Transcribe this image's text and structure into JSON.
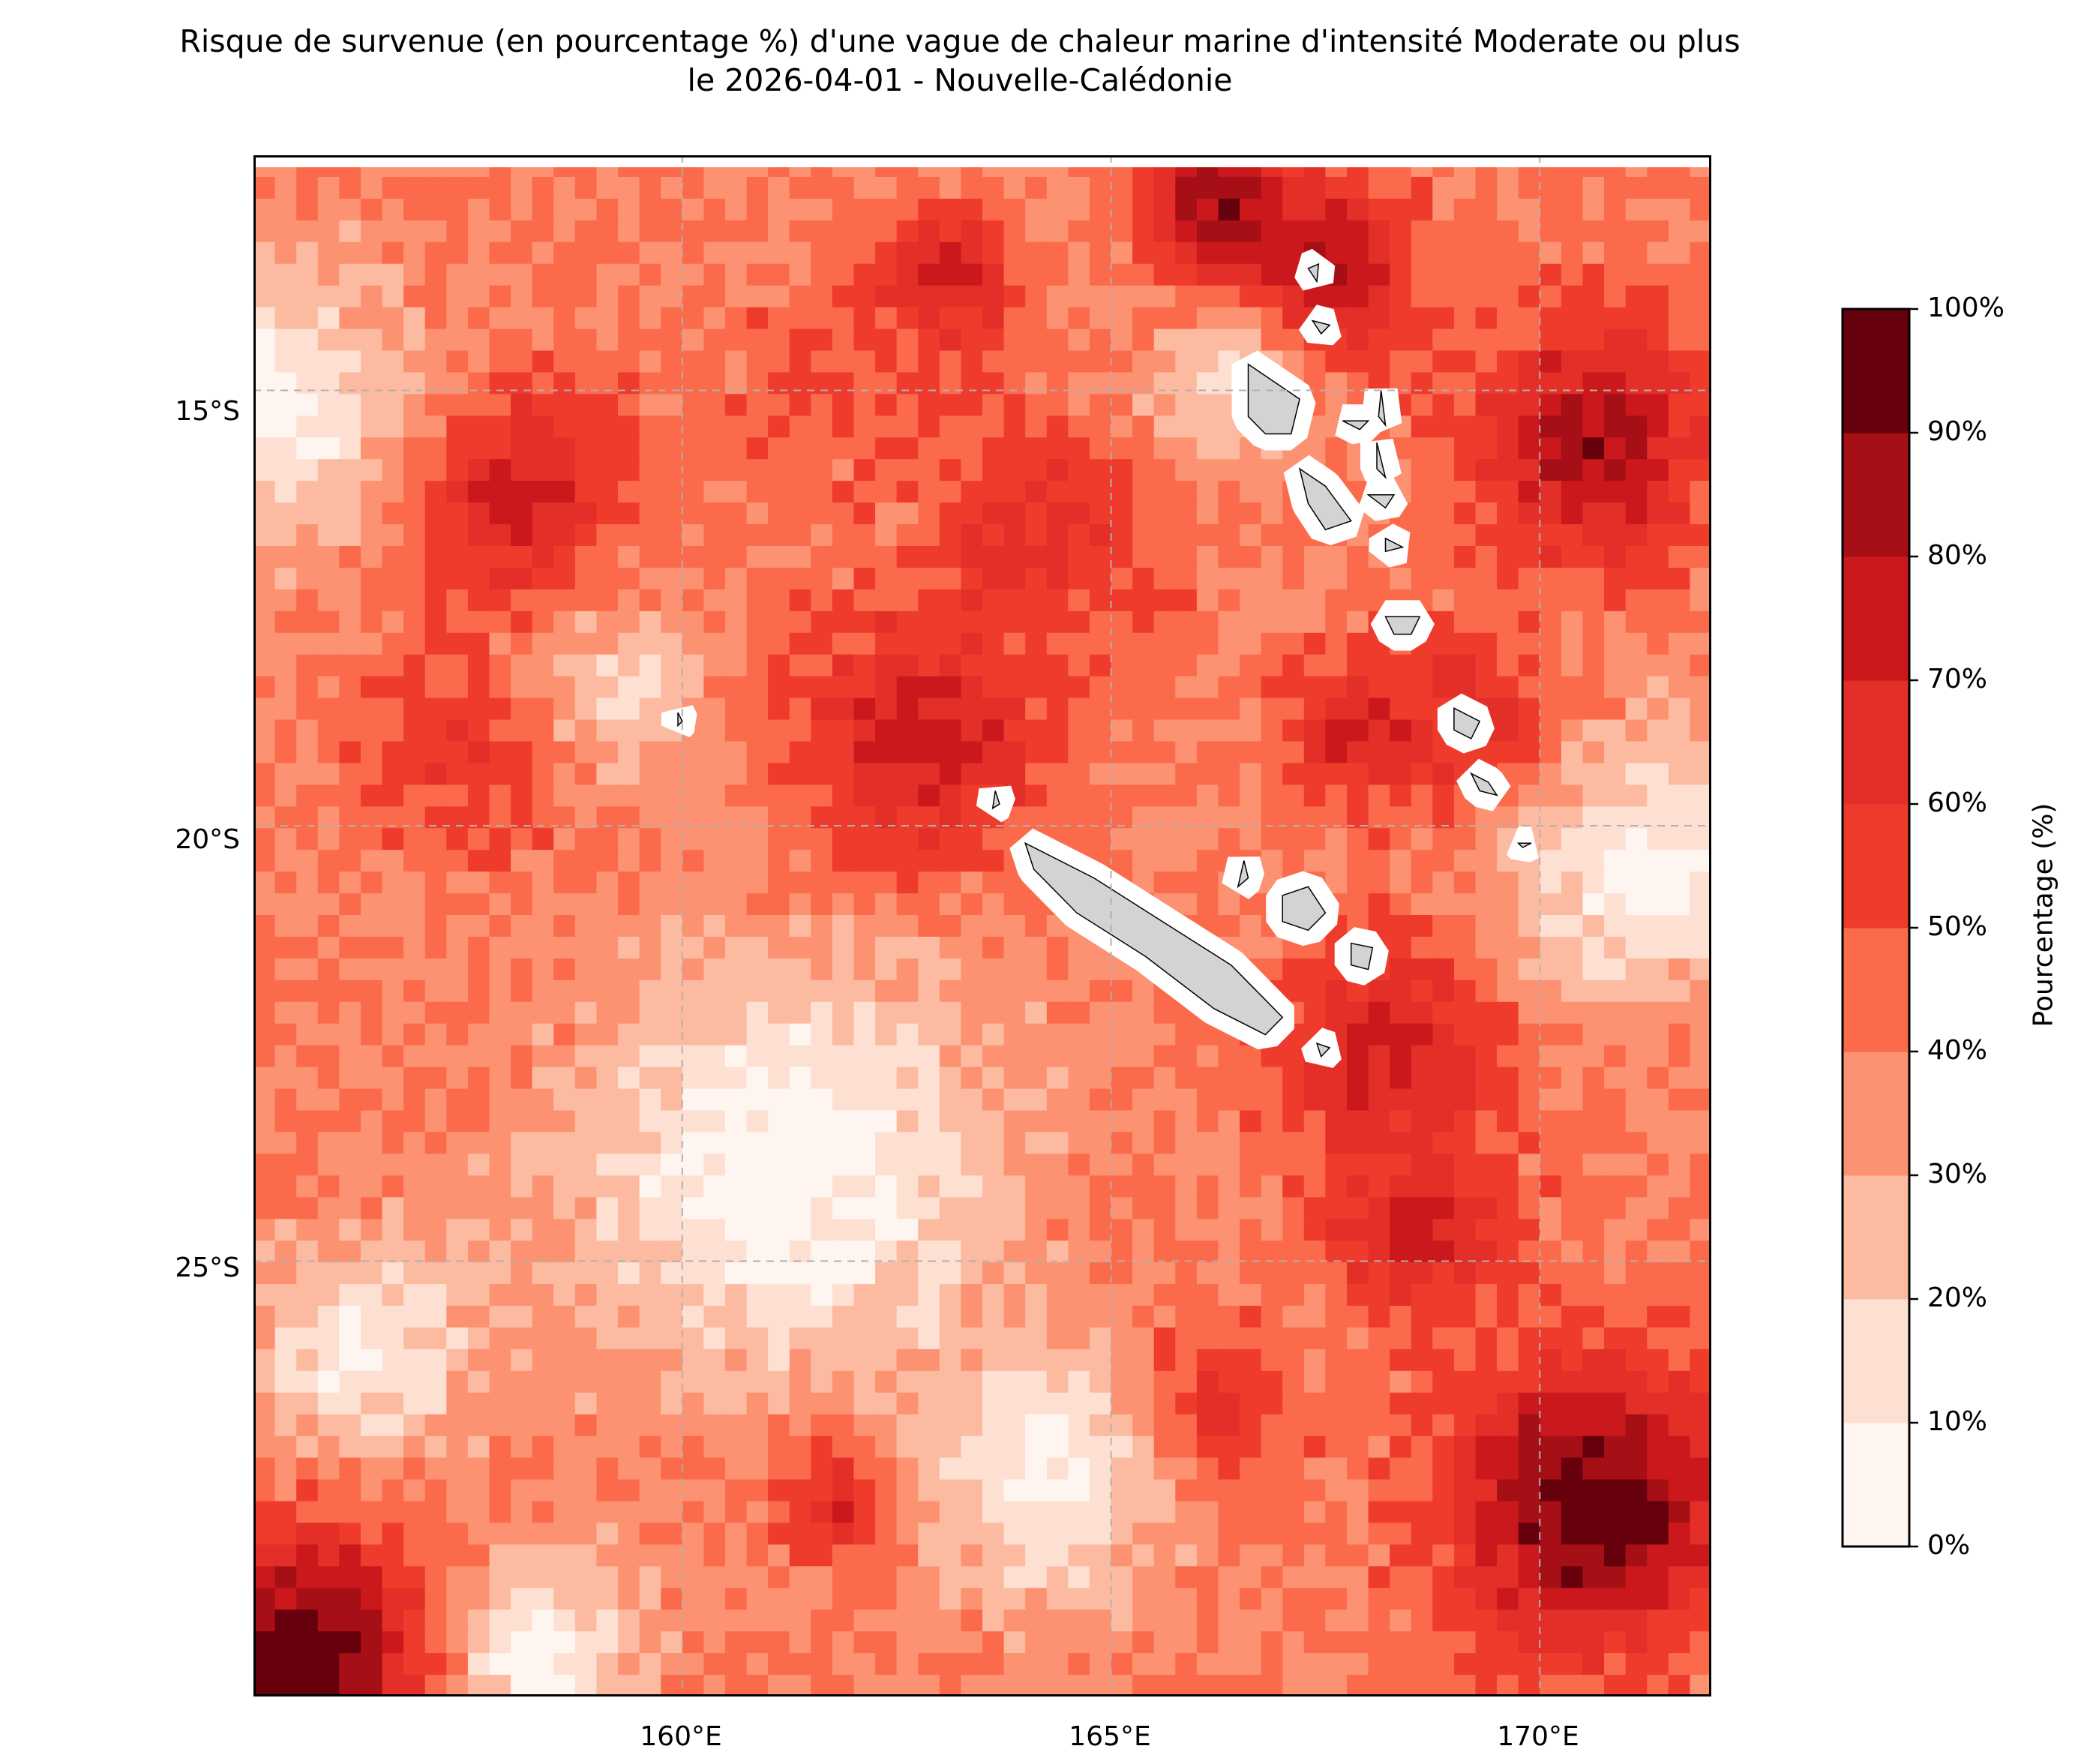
{
  "title": {
    "line1": "Risque de survenue (en pourcentage %) d'une vague de chaleur marine d'intensité Moderate ou plus",
    "line2": "le 2026-04-01 - Nouvelle-Calédonie"
  },
  "map": {
    "region": "Nouvelle-Calédonie",
    "lon_range": [
      155,
      172
    ],
    "lat_range": [
      -30,
      -12.3
    ],
    "lat_ticks": [
      {
        "value": -15,
        "label": "15°S"
      },
      {
        "value": -20,
        "label": "20°S"
      },
      {
        "value": -25,
        "label": "25°S"
      }
    ],
    "lon_ticks": [
      {
        "value": 160,
        "label": "160°E"
      },
      {
        "value": 165,
        "label": "165°E"
      },
      {
        "value": 170,
        "label": "170°E"
      }
    ],
    "gridlines": true,
    "land_color": "#d3d3d3",
    "hotspots": [
      {
        "lon": 167.4,
        "lat": -13.6,
        "value": 82,
        "r": 1.0
      },
      {
        "lon": 166.2,
        "lat": -12.8,
        "value": 88,
        "r": 0.8
      },
      {
        "lon": 170.6,
        "lat": -15.6,
        "value": 84,
        "r": 1.3
      },
      {
        "lon": 158.0,
        "lat": -16.2,
        "value": 76,
        "r": 1.2
      },
      {
        "lon": 162.8,
        "lat": -19.0,
        "value": 75,
        "r": 1.4
      },
      {
        "lon": 163.0,
        "lat": -13.8,
        "value": 74,
        "r": 0.8
      },
      {
        "lon": 164.3,
        "lat": -16.6,
        "value": 64,
        "r": 1.2
      },
      {
        "lon": 168.3,
        "lat": -22.5,
        "value": 74,
        "r": 1.2
      },
      {
        "lon": 168.6,
        "lat": -24.6,
        "value": 72,
        "r": 1.0
      },
      {
        "lon": 167.9,
        "lat": -18.9,
        "value": 68,
        "r": 0.8
      },
      {
        "lon": 170.6,
        "lat": -27.8,
        "value": 100,
        "r": 1.5
      },
      {
        "lon": 155.7,
        "lat": -29.5,
        "value": 100,
        "r": 1.3
      },
      {
        "lon": 161.8,
        "lat": -27.7,
        "value": 76,
        "r": 0.7
      },
      {
        "lon": 166.0,
        "lat": -26.8,
        "value": 70,
        "r": 1.0
      },
      {
        "lon": 157.5,
        "lat": -19.2,
        "value": 58,
        "r": 1.2
      },
      {
        "lon": 171.7,
        "lat": -21.8,
        "value": 62,
        "r": 0.6
      },
      {
        "lon": 161.5,
        "lat": -15.0,
        "value": 50,
        "r": 1.2
      },
      {
        "lon": 169.2,
        "lat": -18.9,
        "value": 70,
        "r": 0.9
      }
    ],
    "coldspots": [
      {
        "lon": 161.2,
        "lat": -24.0,
        "value": 2,
        "r": 2.2
      },
      {
        "lon": 155.3,
        "lat": -15.2,
        "value": 8,
        "r": 1.5
      },
      {
        "lon": 171.3,
        "lat": -20.6,
        "value": 6,
        "r": 1.5
      },
      {
        "lon": 164.3,
        "lat": -27.4,
        "value": 6,
        "r": 1.4
      },
      {
        "lon": 158.4,
        "lat": -29.5,
        "value": 6,
        "r": 1.0
      },
      {
        "lon": 156.3,
        "lat": -26.0,
        "value": 10,
        "r": 1.2
      },
      {
        "lon": 166.3,
        "lat": -15.0,
        "value": 18,
        "r": 0.9
      },
      {
        "lon": 159.3,
        "lat": -18.4,
        "value": 22,
        "r": 1.0
      }
    ],
    "islands": [
      {
        "name": "Grande Terre",
        "points": [
          [
            164.0,
            -20.2
          ],
          [
            164.8,
            -20.6
          ],
          [
            165.6,
            -21.1
          ],
          [
            166.4,
            -21.6
          ],
          [
            167.0,
            -22.2
          ],
          [
            166.8,
            -22.4
          ],
          [
            166.2,
            -22.1
          ],
          [
            165.4,
            -21.5
          ],
          [
            164.6,
            -21.0
          ],
          [
            164.1,
            -20.5
          ]
        ]
      },
      {
        "name": "Belep",
        "points": [
          [
            163.65,
            -19.6
          ],
          [
            163.7,
            -19.75
          ],
          [
            163.62,
            -19.8
          ]
        ]
      },
      {
        "name": "Ouvéa",
        "points": [
          [
            166.55,
            -20.4
          ],
          [
            166.6,
            -20.6
          ],
          [
            166.48,
            -20.7
          ]
        ]
      },
      {
        "name": "Lifou",
        "points": [
          [
            167.0,
            -20.8
          ],
          [
            167.3,
            -20.7
          ],
          [
            167.5,
            -21.0
          ],
          [
            167.3,
            -21.2
          ],
          [
            167.0,
            -21.1
          ]
        ]
      },
      {
        "name": "Maré",
        "points": [
          [
            167.8,
            -21.35
          ],
          [
            168.05,
            -21.4
          ],
          [
            168.0,
            -21.65
          ],
          [
            167.8,
            -21.6
          ]
        ]
      },
      {
        "name": "Île des Pins",
        "points": [
          [
            167.4,
            -22.5
          ],
          [
            167.55,
            -22.55
          ],
          [
            167.45,
            -22.65
          ]
        ]
      },
      {
        "name": "Espiritu Santo",
        "points": [
          [
            166.6,
            -14.7
          ],
          [
            166.9,
            -14.9
          ],
          [
            167.2,
            -15.1
          ],
          [
            167.1,
            -15.5
          ],
          [
            166.8,
            -15.5
          ],
          [
            166.6,
            -15.3
          ]
        ]
      },
      {
        "name": "Malakula",
        "points": [
          [
            167.2,
            -15.9
          ],
          [
            167.5,
            -16.1
          ],
          [
            167.8,
            -16.5
          ],
          [
            167.5,
            -16.6
          ],
          [
            167.3,
            -16.3
          ]
        ]
      },
      {
        "name": "Ambae",
        "points": [
          [
            167.7,
            -15.35
          ],
          [
            168.0,
            -15.35
          ],
          [
            167.9,
            -15.45
          ]
        ]
      },
      {
        "name": "Pentecost",
        "points": [
          [
            168.1,
            -15.6
          ],
          [
            168.2,
            -16.0
          ],
          [
            168.1,
            -15.9
          ]
        ]
      },
      {
        "name": "Maewo",
        "points": [
          [
            168.15,
            -15.0
          ],
          [
            168.2,
            -15.4
          ],
          [
            168.12,
            -15.3
          ]
        ]
      },
      {
        "name": "Ambrym",
        "points": [
          [
            168.0,
            -16.2
          ],
          [
            168.3,
            -16.2
          ],
          [
            168.2,
            -16.35
          ]
        ]
      },
      {
        "name": "Epi",
        "points": [
          [
            168.2,
            -16.7
          ],
          [
            168.4,
            -16.8
          ],
          [
            168.2,
            -16.85
          ]
        ]
      },
      {
        "name": "Efate",
        "points": [
          [
            168.2,
            -17.6
          ],
          [
            168.6,
            -17.6
          ],
          [
            168.5,
            -17.8
          ],
          [
            168.3,
            -17.8
          ]
        ]
      },
      {
        "name": "Erromango",
        "points": [
          [
            169.0,
            -18.65
          ],
          [
            169.3,
            -18.8
          ],
          [
            169.2,
            -19.0
          ],
          [
            169.0,
            -18.9
          ]
        ]
      },
      {
        "name": "Tanna",
        "points": [
          [
            169.2,
            -19.4
          ],
          [
            169.4,
            -19.5
          ],
          [
            169.5,
            -19.65
          ],
          [
            169.3,
            -19.6
          ]
        ]
      },
      {
        "name": "Aneityum",
        "points": [
          [
            169.75,
            -20.2
          ],
          [
            169.9,
            -20.2
          ],
          [
            169.8,
            -20.25
          ]
        ]
      },
      {
        "name": "Hiu",
        "points": [
          [
            167.3,
            -13.6
          ],
          [
            167.42,
            -13.55
          ],
          [
            167.4,
            -13.75
          ]
        ]
      },
      {
        "name": "Gaua",
        "points": [
          [
            167.35,
            -14.2
          ],
          [
            167.55,
            -14.25
          ],
          [
            167.45,
            -14.35
          ]
        ]
      },
      {
        "name": "Hunter",
        "points": [
          [
            159.95,
            -18.7
          ],
          [
            160.0,
            -18.8
          ],
          [
            159.95,
            -18.85
          ]
        ]
      }
    ]
  },
  "colorbar": {
    "title": "Pourcentage (%)",
    "levels": [
      0,
      10,
      20,
      30,
      40,
      50,
      60,
      70,
      80,
      90,
      100
    ],
    "tick_labels": [
      "0%",
      "10%",
      "20%",
      "30%",
      "40%",
      "50%",
      "60%",
      "70%",
      "80%",
      "90%",
      "100%"
    ],
    "colors": [
      "#fff5f0",
      "#fee0d2",
      "#fcbba1",
      "#fc9272",
      "#fb6a4a",
      "#ef3b2c",
      "#e32f27",
      "#cb181d",
      "#a50f15",
      "#67000d"
    ]
  }
}
